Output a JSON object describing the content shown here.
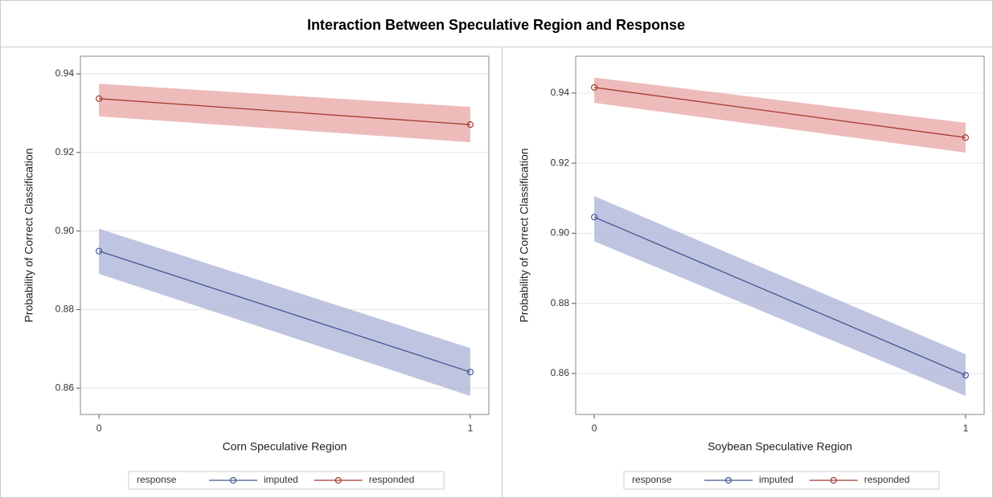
{
  "title": "Interaction Between Speculative Region and Response",
  "chart_data": [
    {
      "type": "line",
      "xlabel": "Corn Speculative Region",
      "ylabel": "Probability of Correct Classification",
      "x": [
        0,
        1
      ],
      "xlim": [
        -0.05,
        1.05
      ],
      "xticks": [
        0,
        1
      ],
      "ylim": [
        0.8533,
        0.9445
      ],
      "yticks": [
        0.86,
        0.88,
        0.9,
        0.92,
        0.94
      ],
      "grid": true,
      "legend_title": "response",
      "series": [
        {
          "name": "imputed",
          "color": "#445694",
          "band_color": "#a9b1d6",
          "values": [
            0.8949,
            0.8641
          ],
          "lower": [
            0.8891,
            0.858
          ],
          "upper": [
            0.9006,
            0.8702
          ]
        },
        {
          "name": "responded",
          "color": "#a23a2e",
          "band_color": "#e8a4a4",
          "values": [
            0.9337,
            0.9271
          ],
          "lower": [
            0.9292,
            0.9226
          ],
          "upper": [
            0.9375,
            0.9316
          ]
        }
      ]
    },
    {
      "type": "line",
      "xlabel": "Soybean Speculative Region",
      "ylabel": "Probability of Correct Classification",
      "x": [
        0,
        1
      ],
      "xlim": [
        -0.05,
        1.05
      ],
      "xticks": [
        0,
        1
      ],
      "ylim": [
        0.8483,
        0.9505
      ],
      "yticks": [
        0.86,
        0.88,
        0.9,
        0.92,
        0.94
      ],
      "grid": true,
      "legend_title": "response",
      "series": [
        {
          "name": "imputed",
          "color": "#445694",
          "band_color": "#a9b1d6",
          "values": [
            0.9046,
            0.8595
          ],
          "lower": [
            0.8977,
            0.8536
          ],
          "upper": [
            0.9106,
            0.8655
          ]
        },
        {
          "name": "responded",
          "color": "#a23a2e",
          "band_color": "#e8a4a4",
          "values": [
            0.9416,
            0.9273
          ],
          "lower": [
            0.9372,
            0.923
          ],
          "upper": [
            0.9444,
            0.9315
          ]
        }
      ]
    }
  ]
}
